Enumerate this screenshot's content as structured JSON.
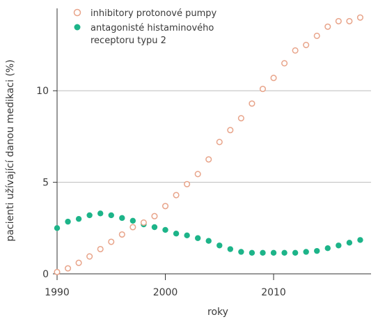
{
  "chart_data": {
    "type": "scatter",
    "xlabel": "roky",
    "ylabel": "pacienti užívající danou medikaci (%)",
    "xlim": [
      1990,
      2019
    ],
    "ylim": [
      0,
      14.5
    ],
    "x_ticks": [
      1990,
      2000,
      2010
    ],
    "y_ticks": [
      0,
      5,
      10
    ],
    "grid": "horizontal at 5 and 10",
    "legend_position": "top-left",
    "colors": {
      "ppi": "#e8a48a",
      "h2ra": "#1db489",
      "grid": "#bdbdbd",
      "axis": "#333333"
    },
    "series": [
      {
        "name": "inhibitory protonové pumpy",
        "marker": "hollow-circle",
        "x": [
          1990,
          1991,
          1992,
          1993,
          1994,
          1995,
          1996,
          1997,
          1998,
          1999,
          2000,
          2001,
          2002,
          2003,
          2004,
          2005,
          2006,
          2007,
          2008,
          2009,
          2010,
          2011,
          2012,
          2013,
          2014,
          2015,
          2016,
          2017,
          2018
        ],
        "values": [
          0.1,
          0.3,
          0.6,
          0.95,
          1.35,
          1.75,
          2.15,
          2.55,
          2.8,
          3.15,
          3.7,
          4.3,
          4.9,
          5.45,
          6.25,
          7.2,
          7.85,
          8.5,
          9.3,
          10.1,
          10.7,
          11.5,
          12.2,
          12.5,
          13.0,
          13.5,
          13.8,
          13.8,
          14.0
        ]
      },
      {
        "name": "antagonisté histaminového receptoru typu 2",
        "marker": "filled-circle",
        "x": [
          1990,
          1991,
          1992,
          1993,
          1994,
          1995,
          1996,
          1997,
          1998,
          1999,
          2000,
          2001,
          2002,
          2003,
          2004,
          2005,
          2006,
          2007,
          2008,
          2009,
          2010,
          2011,
          2012,
          2013,
          2014,
          2015,
          2016,
          2017,
          2018
        ],
        "values": [
          2.5,
          2.85,
          3.0,
          3.2,
          3.3,
          3.2,
          3.05,
          2.9,
          2.7,
          2.55,
          2.4,
          2.2,
          2.1,
          1.95,
          1.8,
          1.55,
          1.35,
          1.2,
          1.15,
          1.15,
          1.15,
          1.15,
          1.15,
          1.2,
          1.25,
          1.4,
          1.55,
          1.7,
          1.85
        ]
      }
    ]
  }
}
